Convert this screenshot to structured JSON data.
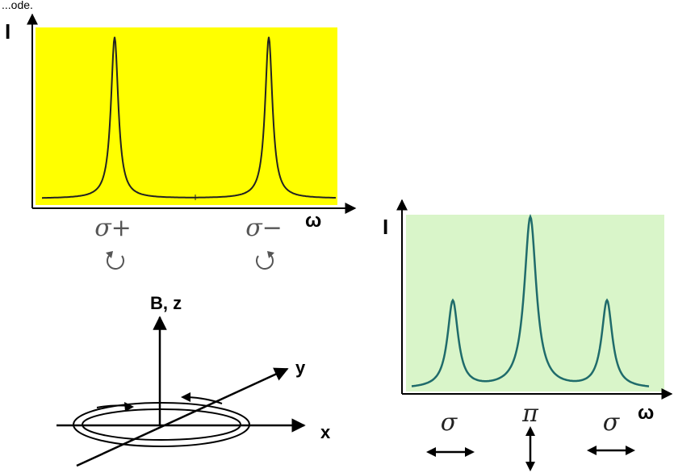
{
  "header_fragment": "...ode.",
  "zeeman_longitudinal": {
    "ylabel": "I",
    "xlabel": "ω",
    "peak_labels": [
      "σ+",
      "σ−"
    ],
    "rotation_icons": [
      "counterclockwise-arrow",
      "clockwise-arrow"
    ],
    "colors": {
      "background": "#ffff00",
      "curve": "#222222"
    }
  },
  "zeeman_transverse": {
    "ylabel": "I",
    "xlabel": "ω",
    "peak_labels": [
      "σ",
      "π",
      "σ"
    ],
    "polarization_icons": [
      "horizontal-double-arrow",
      "vertical-double-arrow",
      "horizontal-double-arrow"
    ],
    "colors": {
      "background": "#d9f5c9",
      "curve": "#1f6b6b"
    }
  },
  "coordinate_system": {
    "z_label": "B, z",
    "y_label": "y",
    "x_label": "x"
  }
}
